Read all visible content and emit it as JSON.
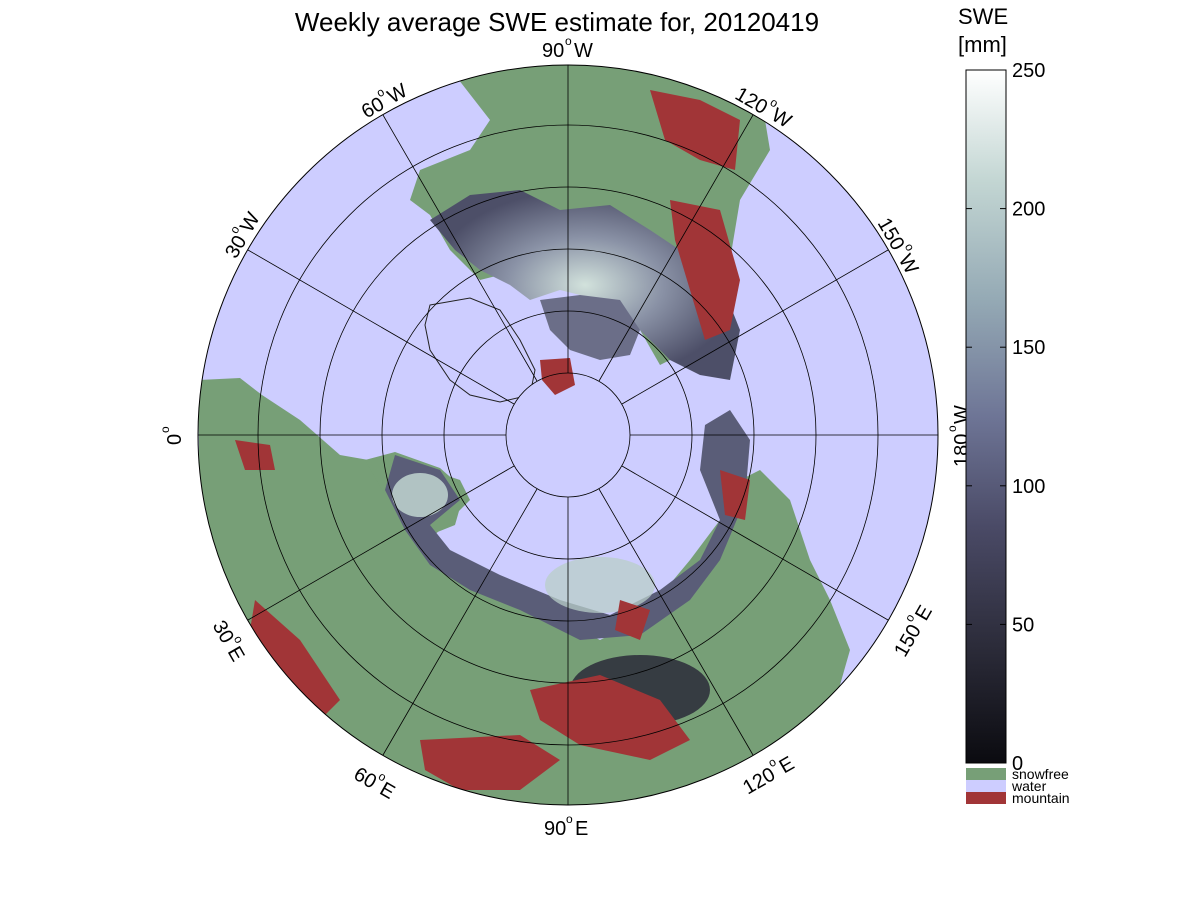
{
  "title": "Weekly average SWE estimate for, 20120419",
  "projection_labels": {
    "lon_0": "0",
    "lon_30w": "30",
    "lon_60w": "60",
    "lon_90w": "90",
    "lon_120w": "120",
    "lon_150w": "150",
    "lon_180w": "180",
    "lon_30e": "30",
    "lon_60e": "60",
    "lon_90e": "90",
    "lon_120e": "120",
    "lon_150e": "150",
    "dir_w": "W",
    "dir_e": "E",
    "degree": "o"
  },
  "colorbar": {
    "title_line1": "SWE",
    "title_line2": "[mm]",
    "ticks": [
      "0",
      "50",
      "100",
      "150",
      "200",
      "250"
    ],
    "range": [
      0,
      250
    ],
    "colormap": [
      "#0b0b10",
      "#2c2c3a",
      "#4a4a66",
      "#6e7596",
      "#95aab5",
      "#c3d6d3",
      "#ffffff"
    ]
  },
  "legend": {
    "items": [
      {
        "label": "snowfree",
        "color": "#779f77"
      },
      {
        "label": "water",
        "color": "#cdcdff"
      },
      {
        "label": "mountain",
        "color": "#a13537"
      }
    ]
  },
  "colors": {
    "ocean": "#cdcdff",
    "land_snowfree": "#779f77",
    "mountain": "#a13537",
    "snow_mid": "#5a5d78",
    "snow_dark": "#2a2a38",
    "snow_light": "#c7ddd6"
  }
}
